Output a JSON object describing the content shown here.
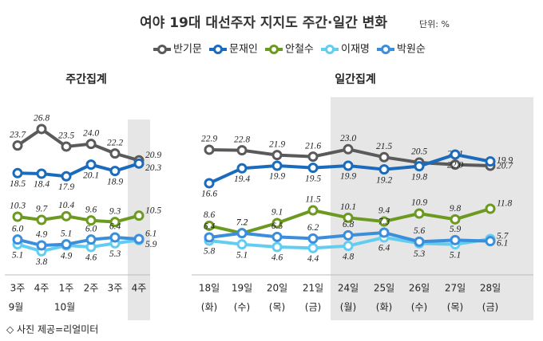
{
  "title": "여야 19대 대선주자 지지도 주간·일간 변화",
  "unit": "단위: %",
  "source": "◇ 사진 제공=리얼미터",
  "legend": [
    {
      "name": "반기문",
      "color": "#5a5a5a"
    },
    {
      "name": "문재인",
      "color": "#1b6bbd"
    },
    {
      "name": "안철수",
      "color": "#6c9a20"
    },
    {
      "name": "이재명",
      "color": "#62cdf0"
    },
    {
      "name": "박원순",
      "color": "#3b8edb"
    }
  ],
  "chart_data": [
    {
      "type": "line",
      "title": "주간집계",
      "categories": [
        "3주",
        "4주",
        "1주",
        "2주",
        "3주",
        "4주"
      ],
      "months": [
        "9월",
        null,
        "10월",
        null,
        null,
        null
      ],
      "series": [
        {
          "name": "반기문",
          "color": "#5a5a5a",
          "values": [
            23.7,
            26.8,
            23.5,
            24,
            22.2,
            20.9
          ],
          "value_labels": [
            "23.7",
            "26.8",
            "23.5",
            "24.0",
            "22.2",
            "20.9"
          ]
        },
        {
          "name": "문재인",
          "color": "#1b6bbd",
          "values": [
            18.5,
            18.4,
            17.9,
            20.1,
            18.9,
            20.3
          ]
        },
        {
          "name": "안철수",
          "color": "#6c9a20",
          "values": [
            10.3,
            9.7,
            10.4,
            9.6,
            9.3,
            10.5
          ]
        },
        {
          "name": "이재명",
          "color": "#62cdf0",
          "values": [
            5.1,
            3.8,
            4.9,
            4.6,
            5.3,
            5.9
          ]
        },
        {
          "name": "박원순",
          "color": "#3b8edb",
          "values": [
            6,
            4.9,
            5.1,
            6,
            6.4,
            6.1
          ],
          "value_labels": [
            "6.0",
            "4.9",
            "5.1",
            "6.0",
            "6.4",
            "6.1"
          ]
        }
      ]
    },
    {
      "type": "line",
      "title": "일간집계",
      "categories": [
        "18일",
        "19일",
        "20일",
        "21일",
        "24일",
        "25일",
        "26일",
        "27일",
        "28일"
      ],
      "weekdays": [
        "(화)",
        "(수)",
        "(목)",
        "(금)",
        "(월)",
        "(화)",
        "(수)",
        "(목)",
        "(금)"
      ],
      "series": [
        {
          "name": "반기문",
          "color": "#5a5a5a",
          "values": [
            22.9,
            22.8,
            21.9,
            21.6,
            23,
            21.5,
            20.5,
            20.1,
            19.9
          ],
          "value_labels": [
            "22.9",
            "22.8",
            "21.9",
            "21.6",
            "23.0",
            "21.5",
            "20.5",
            "20.1",
            "19.9"
          ]
        },
        {
          "name": "문재인",
          "color": "#1b6bbd",
          "values": [
            16.6,
            19.4,
            19.9,
            19.5,
            19.9,
            19.2,
            19.8,
            22,
            20.7
          ],
          "value_labels": [
            "16.6",
            "19.4",
            "19.9",
            "19.5",
            "19.9",
            "19.2",
            "19.8",
            "22.0",
            "20.7"
          ]
        },
        {
          "name": "안철수",
          "color": "#6c9a20",
          "values": [
            8.6,
            7.2,
            9.1,
            11.5,
            10.1,
            9.4,
            10.9,
            9.8,
            11.8
          ]
        },
        {
          "name": "이재명",
          "color": "#62cdf0",
          "values": [
            5.8,
            5.1,
            4.6,
            4.4,
            4.8,
            6.4,
            5.3,
            5.1,
            6.1
          ]
        },
        {
          "name": "박원순",
          "color": "#3b8edb",
          "values": [
            6.4,
            7.2,
            6.5,
            6.2,
            6.8,
            7.3,
            5.6,
            5.9,
            5.7
          ]
        }
      ]
    }
  ]
}
